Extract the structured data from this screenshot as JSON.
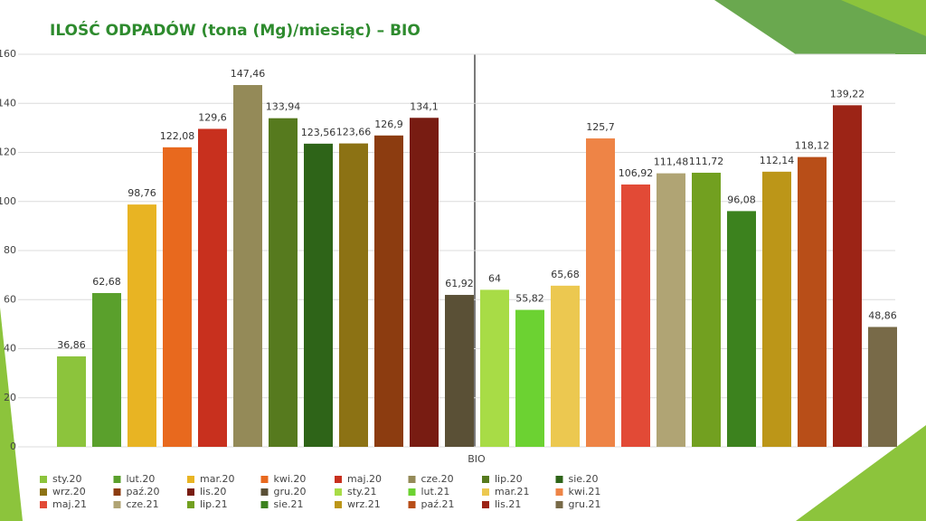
{
  "chart_data": {
    "type": "bar",
    "title": "ILOŚĆ ODPADÓW (tona (Mg)/miesiąc) – BIO",
    "categories": [
      "BIO"
    ],
    "ylim": [
      0,
      160
    ],
    "yticks": [
      0,
      20,
      40,
      60,
      80,
      100,
      120,
      140,
      160
    ],
    "grid": true,
    "series": [
      {
        "name": "sty.20",
        "color": "#8cc43c",
        "values": [
          36.86
        ],
        "value_labels": [
          "36,86"
        ]
      },
      {
        "name": "lut.20",
        "color": "#5aa02c",
        "values": [
          62.68
        ],
        "value_labels": [
          "62,68"
        ]
      },
      {
        "name": "mar.20",
        "color": "#e8b423",
        "values": [
          98.76
        ],
        "value_labels": [
          "98,76"
        ]
      },
      {
        "name": "kwi.20",
        "color": "#e8691e",
        "values": [
          122.08
        ],
        "value_labels": [
          "122,08"
        ]
      },
      {
        "name": "maj.20",
        "color": "#c8301e",
        "values": [
          129.6
        ],
        "value_labels": [
          "129,6"
        ]
      },
      {
        "name": "cze.20",
        "color": "#948a58",
        "values": [
          147.46
        ],
        "value_labels": [
          "147,46"
        ]
      },
      {
        "name": "lip.20",
        "color": "#567a1e",
        "values": [
          133.94
        ],
        "value_labels": [
          "133,94"
        ]
      },
      {
        "name": "sie.20",
        "color": "#2e6418",
        "values": [
          123.56
        ],
        "value_labels": [
          "123,56"
        ]
      },
      {
        "name": "wrz.20",
        "color": "#8c7214",
        "values": [
          123.66
        ],
        "value_labels": [
          "123,66"
        ]
      },
      {
        "name": "paź.20",
        "color": "#8c3c10",
        "values": [
          126.9
        ],
        "value_labels": [
          "126,9"
        ]
      },
      {
        "name": "lis.20",
        "color": "#781c12",
        "values": [
          134.1
        ],
        "value_labels": [
          "134,1"
        ]
      },
      {
        "name": "gru.20",
        "color": "#5a5036",
        "values": [
          61.92
        ],
        "value_labels": [
          "61,92"
        ]
      },
      {
        "name": "sty.21",
        "color": "#a8dc46",
        "values": [
          64
        ],
        "value_labels": [
          "64"
        ]
      },
      {
        "name": "lut.21",
        "color": "#6cd232",
        "values": [
          55.82
        ],
        "value_labels": [
          "55,82"
        ]
      },
      {
        "name": "mar.21",
        "color": "#ecc850",
        "values": [
          65.68
        ],
        "value_labels": [
          "65,68"
        ]
      },
      {
        "name": "kwi.21",
        "color": "#ee8446",
        "values": [
          125.7
        ],
        "value_labels": [
          "125,7"
        ]
      },
      {
        "name": "maj.21",
        "color": "#e24a36",
        "values": [
          106.92
        ],
        "value_labels": [
          "106,92"
        ]
      },
      {
        "name": "cze.21",
        "color": "#b0a474",
        "values": [
          111.48
        ],
        "value_labels": [
          "111,48"
        ]
      },
      {
        "name": "lip.21",
        "color": "#72a020",
        "values": [
          111.72
        ],
        "value_labels": [
          "111,72"
        ]
      },
      {
        "name": "sie.21",
        "color": "#3c821e",
        "values": [
          96.08
        ],
        "value_labels": [
          "96,08"
        ]
      },
      {
        "name": "wrz.21",
        "color": "#bc9618",
        "values": [
          112.14
        ],
        "value_labels": [
          "112,14"
        ]
      },
      {
        "name": "paź.21",
        "color": "#b84e18",
        "values": [
          118.12
        ],
        "value_labels": [
          "118,12"
        ]
      },
      {
        "name": "lis.21",
        "color": "#9c2416",
        "values": [
          139.22
        ],
        "value_labels": [
          "139,22"
        ]
      },
      {
        "name": "gru.21",
        "color": "#786a48",
        "values": [
          48.86
        ],
        "value_labels": [
          "48,86"
        ]
      }
    ]
  }
}
